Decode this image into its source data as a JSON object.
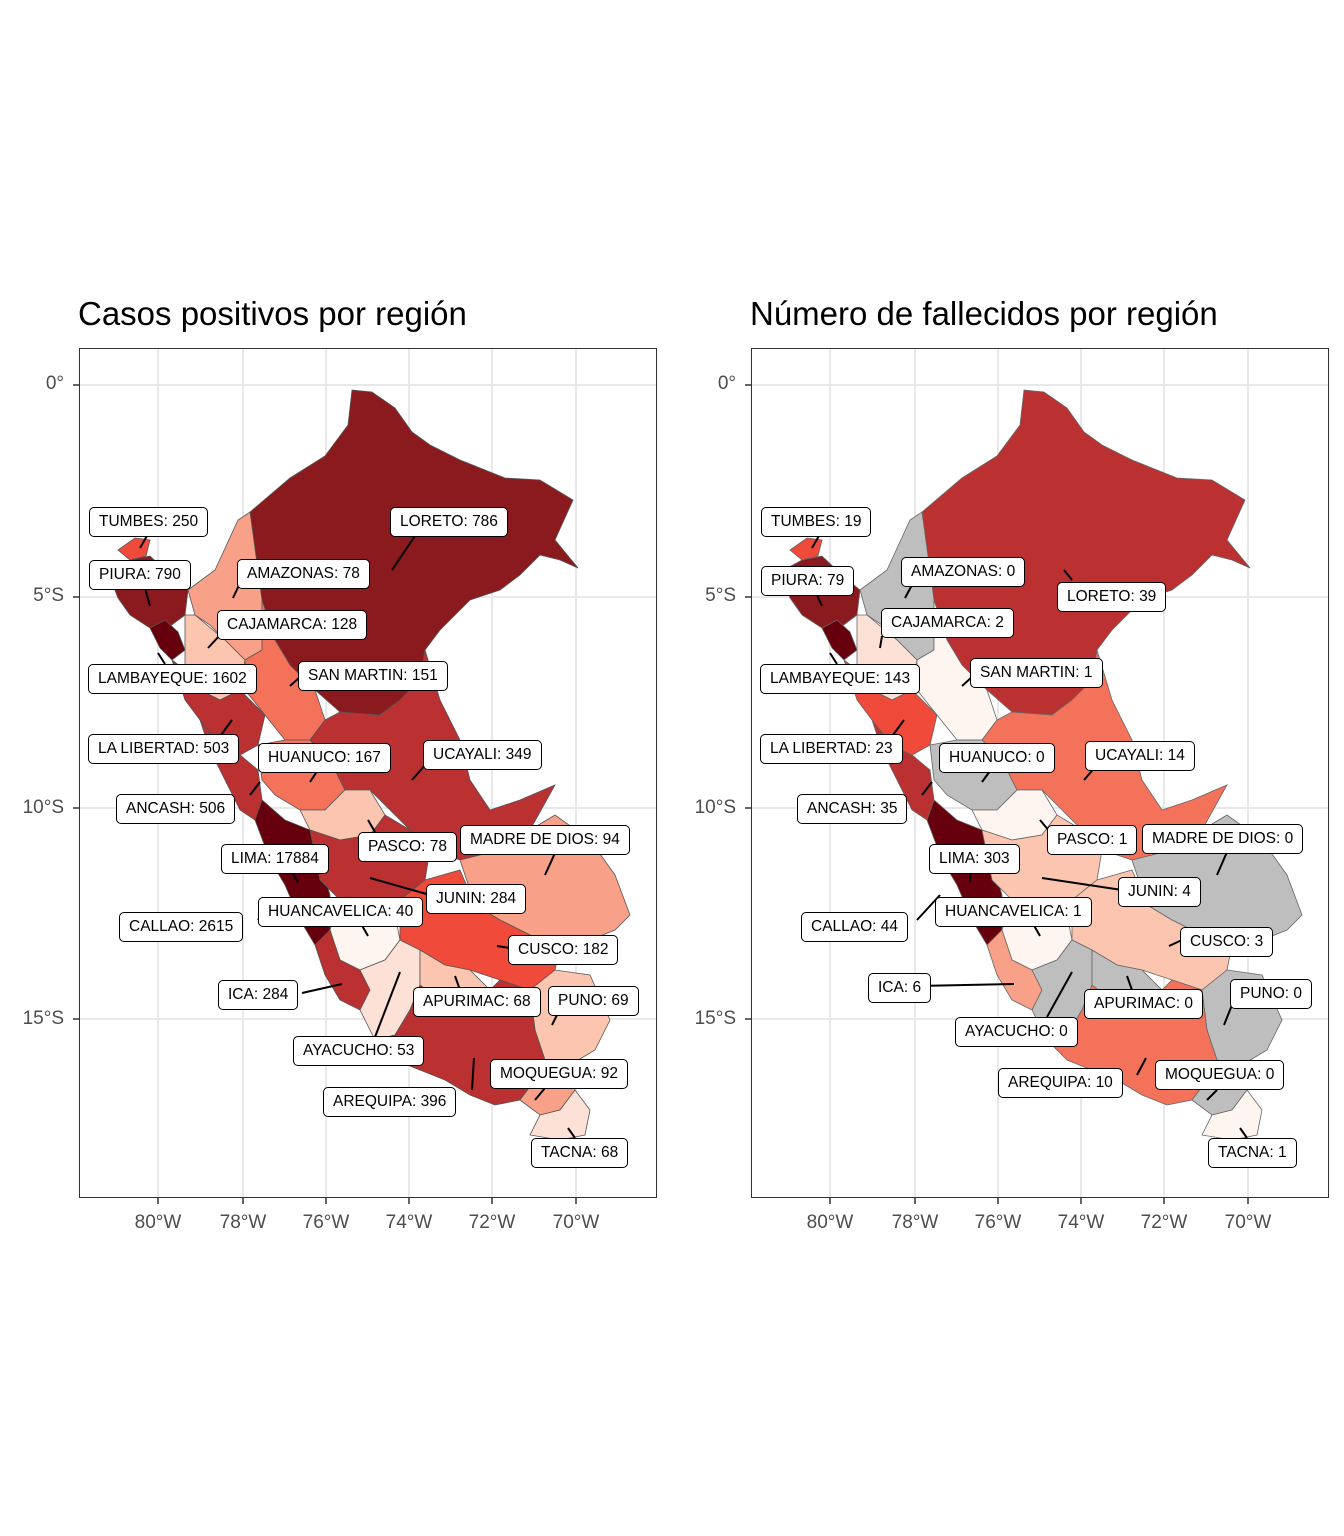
{
  "panels": [
    {
      "title": "Casos positivos por región",
      "y_ticks": [
        "0°",
        "5°S",
        "10°S",
        "15°S"
      ],
      "x_ticks": [
        "80°W",
        "78°W",
        "76°W",
        "74°W",
        "72°W",
        "70°W"
      ],
      "labels": [
        "TUMBES: 250",
        "PIURA: 790",
        "AMAZONAS: 78",
        "LORETO: 786",
        "CAJAMARCA: 128",
        "LAMBAYEQUE: 1602",
        "SAN MARTIN: 151",
        "LA LIBERTAD: 503",
        "HUANUCO: 167",
        "UCAYALI: 349",
        "ANCASH: 506",
        "PASCO: 78",
        "MADRE DE DIOS: 94",
        "LIMA: 17884",
        "JUNIN: 284",
        "HUANCAVELICA: 40",
        "CALLAO: 2615",
        "CUSCO: 182",
        "ICA: 284",
        "APURIMAC: 68",
        "PUNO: 69",
        "AYACUCHO: 53",
        "MOQUEGUA: 92",
        "AREQUIPA: 396",
        "TACNA: 68"
      ]
    },
    {
      "title": "Número de fallecidos por región",
      "y_ticks": [
        "0°",
        "5°S",
        "10°S",
        "15°S"
      ],
      "x_ticks": [
        "80°W",
        "78°W",
        "76°W",
        "74°W",
        "72°W",
        "70°W"
      ],
      "labels": [
        "TUMBES: 19",
        "PIURA: 79",
        "AMAZONAS: 0",
        "LORETO: 39",
        "CAJAMARCA: 2",
        "LAMBAYEQUE: 143",
        "SAN MARTIN: 1",
        "LA LIBERTAD: 23",
        "HUANUCO: 0",
        "UCAYALI: 14",
        "ANCASH: 35",
        "PASCO: 1",
        "MADRE DE DIOS: 0",
        "LIMA: 303",
        "JUNIN: 4",
        "HUANCAVELICA: 1",
        "CALLAO: 44",
        "CUSCO: 3",
        "ICA: 6",
        "APURIMAC: 0",
        "PUNO: 0",
        "AYACUCHO: 0",
        "MOQUEGUA: 0",
        "AREQUIPA: 10",
        "TACNA: 1"
      ]
    }
  ],
  "colors": {
    "darkest": "#67000d",
    "dark": "#8b1a1e",
    "red": "#bb3030",
    "mid": "#ef4a3a",
    "salmon": "#f4725a",
    "light": "#f9a088",
    "pale": "#fcc5b0",
    "palest": "#fde0d6",
    "white": "#fff5f0",
    "na": "#bebebe"
  }
}
